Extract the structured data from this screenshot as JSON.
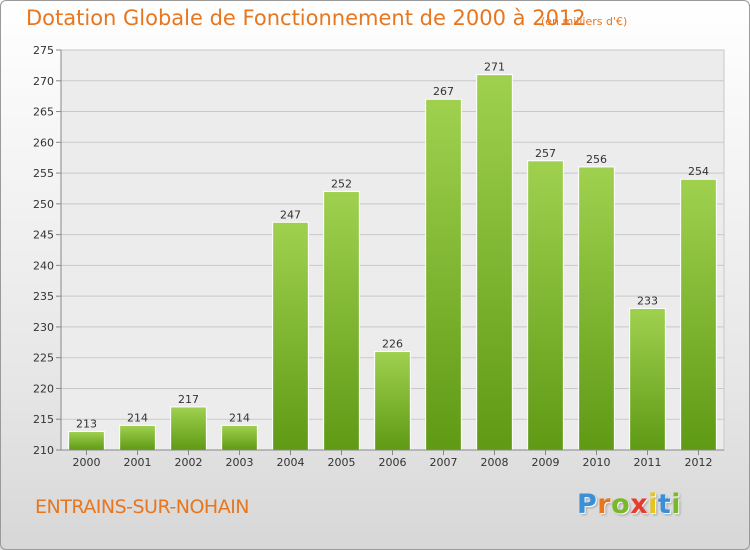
{
  "header": {
    "title": "Dotation Globale de Fonctionnement de 2000 à 2012",
    "unit": "(en milliers d'€)"
  },
  "footer": {
    "commune": "ENTRAINS-SUR-NOHAIN",
    "logo_letters": [
      "P",
      "r",
      "o",
      "x",
      "i",
      "t",
      "i"
    ],
    "logo_colors": [
      "#3a8fd6",
      "#e8761f",
      "#79b929",
      "#e83a2a",
      "#e6c41a",
      "#3a8fd6",
      "#79b929"
    ]
  },
  "chart_data": {
    "type": "bar",
    "title": "Dotation Globale de Fonctionnement de 2000 à 2012",
    "subtitle": "(en milliers d'€)",
    "categories": [
      "2000",
      "2001",
      "2002",
      "2003",
      "2004",
      "2005",
      "2006",
      "2007",
      "2008",
      "2009",
      "2010",
      "2011",
      "2012"
    ],
    "values": [
      213,
      214,
      217,
      214,
      247,
      252,
      226,
      267,
      271,
      257,
      256,
      233,
      254
    ],
    "ylim": [
      210,
      275
    ],
    "yticks": [
      210,
      215,
      220,
      225,
      230,
      235,
      240,
      245,
      250,
      255,
      260,
      265,
      270,
      275
    ],
    "grid": true,
    "bar_color_top": "#9fd14f",
    "bar_color_bottom": "#5f9a15"
  }
}
